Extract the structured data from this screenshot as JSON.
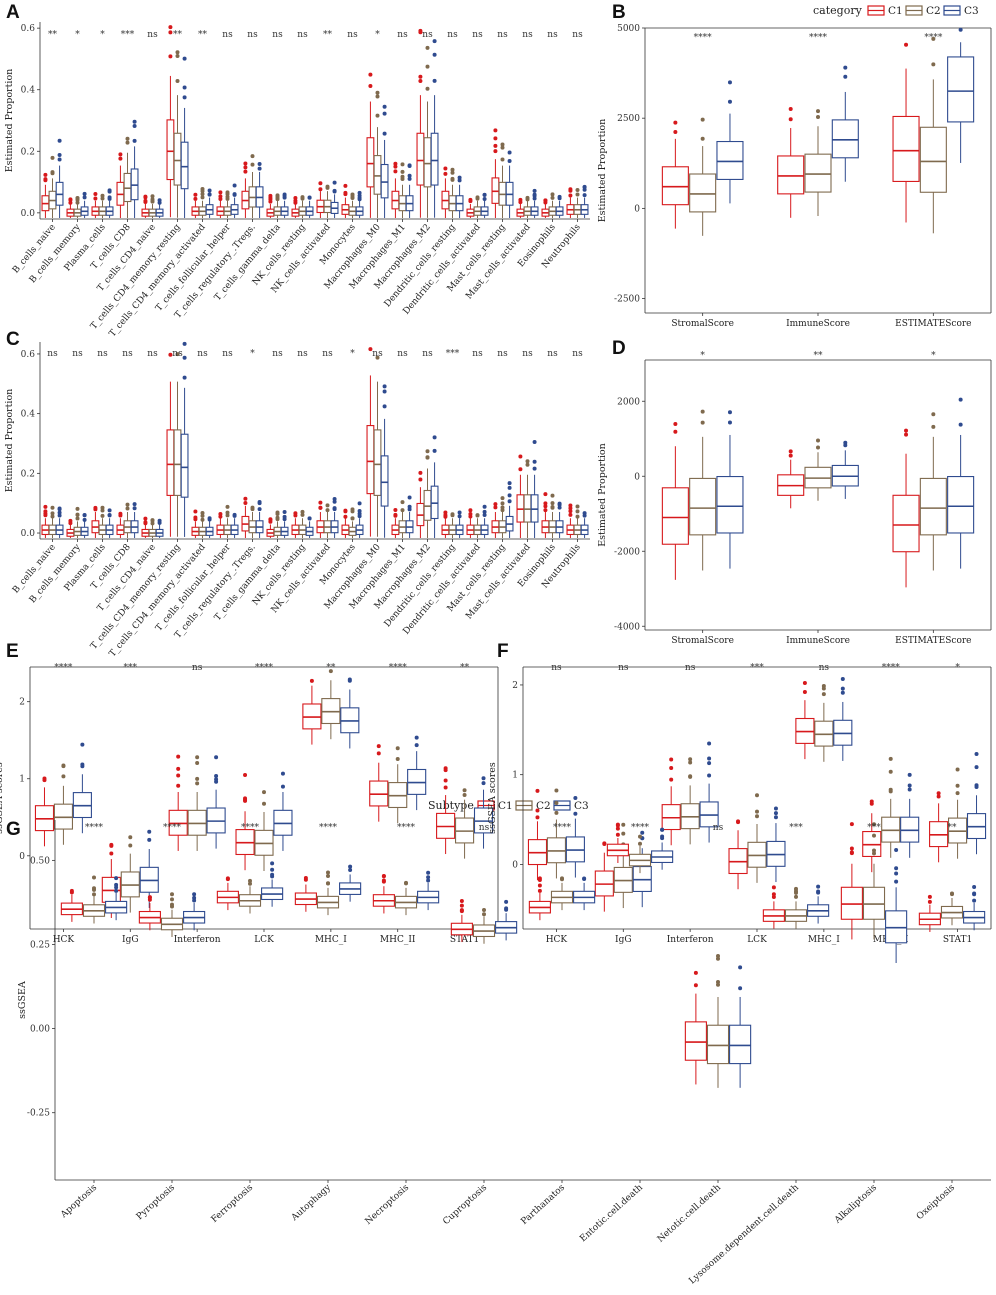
{
  "colors": {
    "C1": "#d7191c",
    "C2": "#7f6a4e",
    "C3": "#2f4b8f"
  },
  "legends": {
    "category": {
      "title": "category",
      "items": [
        "C1",
        "C2",
        "C3"
      ]
    },
    "subtype": {
      "title": "Subtype",
      "items": [
        "C1",
        "C2",
        "C3"
      ]
    }
  },
  "chart_data": [
    {
      "panel": "A",
      "type": "boxplot",
      "ylabel": "Estimated Proportion",
      "ylim": [
        -0.02,
        0.62
      ],
      "yticks": [
        0.0,
        0.2,
        0.4,
        0.6
      ],
      "categories": [
        "B_cells_naive",
        "B_cells_memory",
        "Plasma_cells",
        "T_cells_CD8",
        "T_cells_CD4_naive",
        "T_cells_CD4_memory_resting",
        "T_cells_CD4_memory_activated",
        "T_cells_follicular_helper",
        "T_cells_regulatory_.Tregs.",
        "T_cells_gamma_delta",
        "NK_cells_resting",
        "NK_cells_activated",
        "Monocytes",
        "Macrophages_M0",
        "Macrophages_M1",
        "Macrophages_M2",
        "Dendritic_cells_resting",
        "Dendritic_cells_activated",
        "Mast_cells_resting",
        "Mast_cells_activated",
        "Eosinophils",
        "Neutrophils"
      ],
      "significance": [
        "**",
        "*",
        "*",
        "***",
        "ns",
        "**",
        "**",
        "ns",
        "ns",
        "ns",
        "ns",
        "**",
        "ns",
        "*",
        "ns",
        "ns",
        "ns",
        "ns",
        "ns",
        "ns",
        "ns",
        "ns"
      ],
      "medians": {
        "C1": [
          0.03,
          0.0,
          0.005,
          0.06,
          0.0,
          0.2,
          0.005,
          0.005,
          0.04,
          0.0,
          0.0,
          0.02,
          0.01,
          0.16,
          0.04,
          0.17,
          0.04,
          0.0,
          0.07,
          0.0,
          0.0,
          0.01
        ],
        "C2": [
          0.04,
          0.0,
          0.005,
          0.08,
          0.0,
          0.17,
          0.005,
          0.005,
          0.05,
          0.005,
          0.005,
          0.02,
          0.005,
          0.12,
          0.03,
          0.16,
          0.03,
          0.005,
          0.06,
          0.005,
          0.005,
          0.01
        ],
        "C3": [
          0.06,
          0.005,
          0.005,
          0.09,
          0.0,
          0.15,
          0.01,
          0.01,
          0.05,
          0.005,
          0.005,
          0.015,
          0.005,
          0.1,
          0.03,
          0.17,
          0.03,
          0.005,
          0.06,
          0.005,
          0.005,
          0.01
        ]
      }
    },
    {
      "panel": "B",
      "type": "boxplot",
      "ylabel": "Estimated Proportion",
      "ylim": [
        -2900,
        5000
      ],
      "yticks": [
        -2500,
        0,
        2500,
        5000
      ],
      "categories": [
        "StromalScore",
        "ImmuneScore",
        "ESTIMATEScore"
      ],
      "significance": [
        "****",
        "****",
        "****"
      ],
      "medians": {
        "C1": [
          600,
          900,
          1600
        ],
        "C2": [
          400,
          950,
          1300
        ],
        "C3": [
          1300,
          1900,
          3250
        ]
      }
    },
    {
      "panel": "C",
      "type": "boxplot",
      "ylabel": "Estimated Proportion",
      "ylim": [
        -0.02,
        0.64
      ],
      "yticks": [
        0.0,
        0.2,
        0.4,
        0.6
      ],
      "categories": [
        "B_cells_naive",
        "B_cells_memory",
        "Plasma_cells",
        "T_cells_CD8",
        "T_cells_CD4_naive",
        "T_cells_CD4_memory_resting",
        "T_cells_CD4_memory_activated",
        "T_cells_follicular_helper",
        "T_cells_regulatory_.Tregs.",
        "T_cells_gamma_delta",
        "NK_cells_resting",
        "NK_cells_activated",
        "Monocytes",
        "Macrophages_M0",
        "Macrophages_M1",
        "Macrophages_M2",
        "Dendritic_cells_resting",
        "Dendritic_cells_activated",
        "Mast_cells_resting",
        "Mast_cells_activated",
        "Eosinophils",
        "Neutrophils"
      ],
      "significance": [
        "ns",
        "ns",
        "ns",
        "ns",
        "ns",
        "ns",
        "ns",
        "ns",
        "*",
        "ns",
        "ns",
        "ns",
        "*",
        "ns",
        "ns",
        "ns",
        "***",
        "ns",
        "ns",
        "ns",
        "ns",
        "ns"
      ],
      "medians": {
        "C1": [
          0.01,
          0.0,
          0.02,
          0.01,
          0.0,
          0.23,
          0.005,
          0.01,
          0.03,
          0.0,
          0.01,
          0.02,
          0.01,
          0.24,
          0.01,
          0.06,
          0.01,
          0.01,
          0.02,
          0.08,
          0.02,
          0.01
        ],
        "C2": [
          0.01,
          0.005,
          0.01,
          0.02,
          0.0,
          0.23,
          0.005,
          0.01,
          0.02,
          0.005,
          0.01,
          0.02,
          0.005,
          0.23,
          0.02,
          0.09,
          0.01,
          0.01,
          0.02,
          0.08,
          0.02,
          0.01
        ],
        "C3": [
          0.01,
          0.005,
          0.01,
          0.02,
          0.0,
          0.22,
          0.005,
          0.01,
          0.02,
          0.005,
          0.005,
          0.02,
          0.01,
          0.17,
          0.02,
          0.1,
          0.01,
          0.01,
          0.03,
          0.08,
          0.02,
          0.01
        ]
      }
    },
    {
      "panel": "D",
      "type": "boxplot",
      "ylabel": "Estimated Proportion",
      "ylim": [
        -4100,
        3100
      ],
      "yticks": [
        -4000,
        -2000,
        0,
        2000
      ],
      "categories": [
        "StromalScore",
        "ImmuneScore",
        "ESTIMATEScore"
      ],
      "significance": [
        "*",
        "**",
        "*"
      ],
      "medians": {
        "C1": [
          -1100,
          -250,
          -1300
        ],
        "C2": [
          -850,
          -50,
          -850
        ],
        "C3": [
          -800,
          0,
          -800
        ]
      }
    },
    {
      "panel": "E",
      "type": "boxplot",
      "ylabel": "ssGSEA scores",
      "ylim": [
        -0.95,
        2.45
      ],
      "yticks": [
        0,
        1,
        2
      ],
      "categories": [
        "HCK",
        "IgG",
        "Interferon",
        "LCK",
        "MHC_I",
        "MHC_II",
        "STAT1"
      ],
      "significance": [
        "****",
        "***",
        "ns",
        "****",
        "**",
        "****",
        "**"
      ],
      "medians": {
        "C1": [
          0.48,
          -0.45,
          0.42,
          0.17,
          1.8,
          0.8,
          0.38
        ],
        "C2": [
          0.5,
          -0.38,
          0.42,
          0.16,
          1.87,
          0.78,
          0.32
        ],
        "C3": [
          0.65,
          -0.32,
          0.45,
          0.42,
          1.75,
          0.95,
          0.45
        ]
      }
    },
    {
      "panel": "F",
      "type": "boxplot",
      "ylabel": "ssGSEA scores",
      "ylim": [
        -0.72,
        2.2
      ],
      "yticks": [
        0,
        1,
        2
      ],
      "categories": [
        "HCK",
        "IgG",
        "Interferon",
        "LCK",
        "MHC_I",
        "MHC_II",
        "STAT1"
      ],
      "significance": [
        "ns",
        "ns",
        "ns",
        "***",
        "ns",
        "****",
        "*"
      ],
      "medians": {
        "C1": [
          0.13,
          -0.22,
          0.52,
          0.03,
          1.48,
          0.22,
          0.33
        ],
        "C2": [
          0.15,
          -0.18,
          0.53,
          0.1,
          1.45,
          0.38,
          0.37
        ],
        "C3": [
          0.16,
          -0.17,
          0.55,
          0.11,
          1.46,
          0.38,
          0.42
        ]
      }
    },
    {
      "panel": "G",
      "type": "boxplot",
      "ylabel": "ssGSEA",
      "ylim": [
        -0.45,
        0.62
      ],
      "yticks": [
        -0.25,
        0.0,
        0.25,
        0.5
      ],
      "categories": [
        "Apoptosis",
        "Pyroptosis",
        "Ferroptosis",
        "Autophagy",
        "Necroptosis",
        "Cuproptosis",
        "Parthanatos",
        "Entotic.cell.death",
        "Netotic.cell.death",
        "Lysosome.dependent.cell.death",
        "Alkaliptosis",
        "Oxeiptosis"
      ],
      "significance": [
        "****",
        "****",
        "****",
        "****",
        "****",
        "ns",
        "****",
        "****",
        "ns",
        "***",
        "***",
        "**"
      ],
      "medians": {
        "C1": [
          0.355,
          0.33,
          0.39,
          0.385,
          0.38,
          0.295,
          0.36,
          0.53,
          -0.04,
          0.335,
          0.37,
          0.325
        ],
        "C2": [
          0.35,
          0.31,
          0.38,
          0.375,
          0.375,
          0.29,
          0.39,
          0.5,
          -0.05,
          0.335,
          0.37,
          0.345
        ],
        "C3": [
          0.36,
          0.33,
          0.4,
          0.415,
          0.39,
          0.3,
          0.39,
          0.51,
          -0.05,
          0.35,
          0.3,
          0.33
        ]
      }
    }
  ]
}
